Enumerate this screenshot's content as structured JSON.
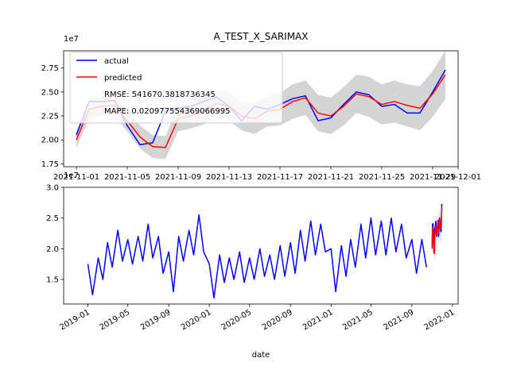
{
  "chart_data": [
    {
      "type": "line",
      "title": "A_TEST_X_SARIMAX",
      "offset_text": "1e7",
      "legend": "upper left",
      "x": [
        "2021-11-01",
        "2021-11-02",
        "2021-11-03",
        "2021-11-04",
        "2021-11-05",
        "2021-11-06",
        "2021-11-07",
        "2021-11-08",
        "2021-11-09",
        "2021-11-10",
        "2021-11-11",
        "2021-11-12",
        "2021-11-13",
        "2021-11-14",
        "2021-11-15",
        "2021-11-16",
        "2021-11-17",
        "2021-11-18",
        "2021-11-19",
        "2021-11-20",
        "2021-11-21",
        "2021-11-22",
        "2021-11-23",
        "2021-11-24",
        "2021-11-25",
        "2021-11-26",
        "2021-11-27",
        "2021-11-28",
        "2021-11-29",
        "2021-11-30"
      ],
      "series": [
        {
          "name": "actual",
          "color": "#0000ff",
          "values": [
            2.05,
            2.4,
            2.4,
            2.41,
            2.15,
            1.95,
            1.97,
            2.3,
            2.33,
            2.35,
            2.4,
            2.45,
            2.35,
            2.2,
            2.35,
            2.32,
            2.37,
            2.43,
            2.46,
            2.2,
            2.23,
            2.37,
            2.5,
            2.47,
            2.35,
            2.37,
            2.28,
            2.28,
            2.5,
            2.73
          ]
        },
        {
          "name": "predicted",
          "color": "#ff0000",
          "values": [
            2.0,
            2.32,
            2.35,
            2.36,
            2.2,
            2.03,
            1.93,
            1.92,
            2.22,
            2.25,
            2.3,
            2.38,
            2.35,
            2.25,
            2.22,
            2.3,
            2.32,
            2.4,
            2.44,
            2.28,
            2.25,
            2.35,
            2.48,
            2.45,
            2.37,
            2.4,
            2.36,
            2.33,
            2.48,
            2.68
          ]
        }
      ],
      "band": {
        "color": "#a0a0a0",
        "lower": [
          1.92,
          2.22,
          2.25,
          2.25,
          2.09,
          1.91,
          1.81,
          1.8,
          2.09,
          2.12,
          2.16,
          2.24,
          2.2,
          2.1,
          2.06,
          2.14,
          2.15,
          2.22,
          2.26,
          2.09,
          2.06,
          2.15,
          2.28,
          2.24,
          2.16,
          2.18,
          2.14,
          2.1,
          2.24,
          2.43
        ],
        "upper": [
          2.08,
          2.42,
          2.45,
          2.47,
          2.31,
          2.15,
          2.05,
          2.04,
          2.35,
          2.38,
          2.44,
          2.52,
          2.5,
          2.4,
          2.38,
          2.46,
          2.49,
          2.58,
          2.62,
          2.47,
          2.44,
          2.55,
          2.68,
          2.66,
          2.58,
          2.62,
          2.58,
          2.56,
          2.72,
          2.93
        ]
      },
      "annotations": [
        "RMSE: 541670.3818736345",
        "MAPE: 0.020977554369066995"
      ],
      "xlim": [
        "2021-10-31",
        "2021-12-01"
      ],
      "xticks": [
        "2021-11-01",
        "2021-11-05",
        "2021-11-09",
        "2021-11-13",
        "2021-11-17",
        "2021-11-21",
        "2021-11-25",
        "2021-11-29",
        "2021-12-01"
      ],
      "ylim": [
        1.72,
        2.93
      ],
      "yticks": [
        1.75,
        {
          "value": 2,
          "label": "2.00"
        },
        2.25,
        {
          "value": 2.5,
          "label": "2.50"
        },
        2.75
      ]
    },
    {
      "type": "line",
      "offset_text": "1e7",
      "xlabel": "date",
      "x": [
        "2019-01-01",
        "2019-01-15",
        "2019-02-01",
        "2019-02-15",
        "2019-03-01",
        "2019-03-15",
        "2019-04-01",
        "2019-04-15",
        "2019-05-01",
        "2019-05-15",
        "2019-06-01",
        "2019-06-15",
        "2019-07-01",
        "2019-07-15",
        "2019-08-01",
        "2019-08-15",
        "2019-09-01",
        "2019-09-15",
        "2019-10-01",
        "2019-10-15",
        "2019-11-01",
        "2019-11-15",
        "2019-12-01",
        "2019-12-15",
        "2020-01-01",
        "2020-01-15",
        "2020-02-01",
        "2020-02-15",
        "2020-03-01",
        "2020-03-15",
        "2020-04-01",
        "2020-04-15",
        "2020-05-01",
        "2020-05-15",
        "2020-06-01",
        "2020-06-15",
        "2020-07-01",
        "2020-07-15",
        "2020-08-01",
        "2020-08-15",
        "2020-09-01",
        "2020-09-15",
        "2020-10-01",
        "2020-10-15",
        "2020-11-01",
        "2020-11-15",
        "2020-12-01",
        "2020-12-15",
        "2021-01-01",
        "2021-01-15",
        "2021-02-01",
        "2021-02-15",
        "2021-03-01",
        "2021-03-15",
        "2021-04-01",
        "2021-04-15",
        "2021-05-01",
        "2021-05-15",
        "2021-06-01",
        "2021-06-15",
        "2021-07-01",
        "2021-07-15",
        "2021-08-01",
        "2021-08-15",
        "2021-09-01",
        "2021-09-15",
        "2021-10-01",
        "2021-10-15"
      ],
      "series": [
        {
          "name": "actual",
          "color": "#0000ff",
          "values": [
            1.75,
            1.25,
            1.85,
            1.5,
            2.1,
            1.7,
            2.3,
            1.8,
            2.15,
            1.75,
            2.2,
            1.8,
            2.4,
            1.85,
            2.2,
            1.6,
            1.95,
            1.3,
            2.2,
            1.8,
            2.3,
            1.9,
            2.55,
            1.95,
            1.75,
            1.2,
            1.9,
            1.45,
            1.85,
            1.5,
            1.95,
            1.45,
            1.85,
            1.5,
            2.0,
            1.55,
            1.9,
            1.5,
            2.05,
            1.55,
            2.1,
            1.6,
            2.3,
            1.8,
            2.45,
            1.9,
            2.4,
            1.95,
            2.0,
            1.3,
            2.05,
            1.55,
            2.15,
            1.7,
            2.4,
            1.85,
            2.5,
            1.9,
            2.45,
            1.9,
            2.5,
            1.95,
            2.4,
            1.85,
            2.15,
            1.6,
            2.15,
            1.7
          ]
        }
      ],
      "xlim": [
        "2018-10-20",
        "2022-01-18"
      ],
      "xticks": [
        "2019-01",
        "2019-05",
        "2019-09",
        "2020-01",
        "2020-05",
        "2020-09",
        "2021-01",
        "2021-05",
        "2021-09",
        "2022-01"
      ],
      "ylim": [
        1.1,
        3.0
      ],
      "yticks": [
        1.5,
        {
          "value": 2,
          "label": "2.0"
        },
        2.5,
        {
          "value": 3,
          "label": "3.0"
        }
      ]
    }
  ]
}
